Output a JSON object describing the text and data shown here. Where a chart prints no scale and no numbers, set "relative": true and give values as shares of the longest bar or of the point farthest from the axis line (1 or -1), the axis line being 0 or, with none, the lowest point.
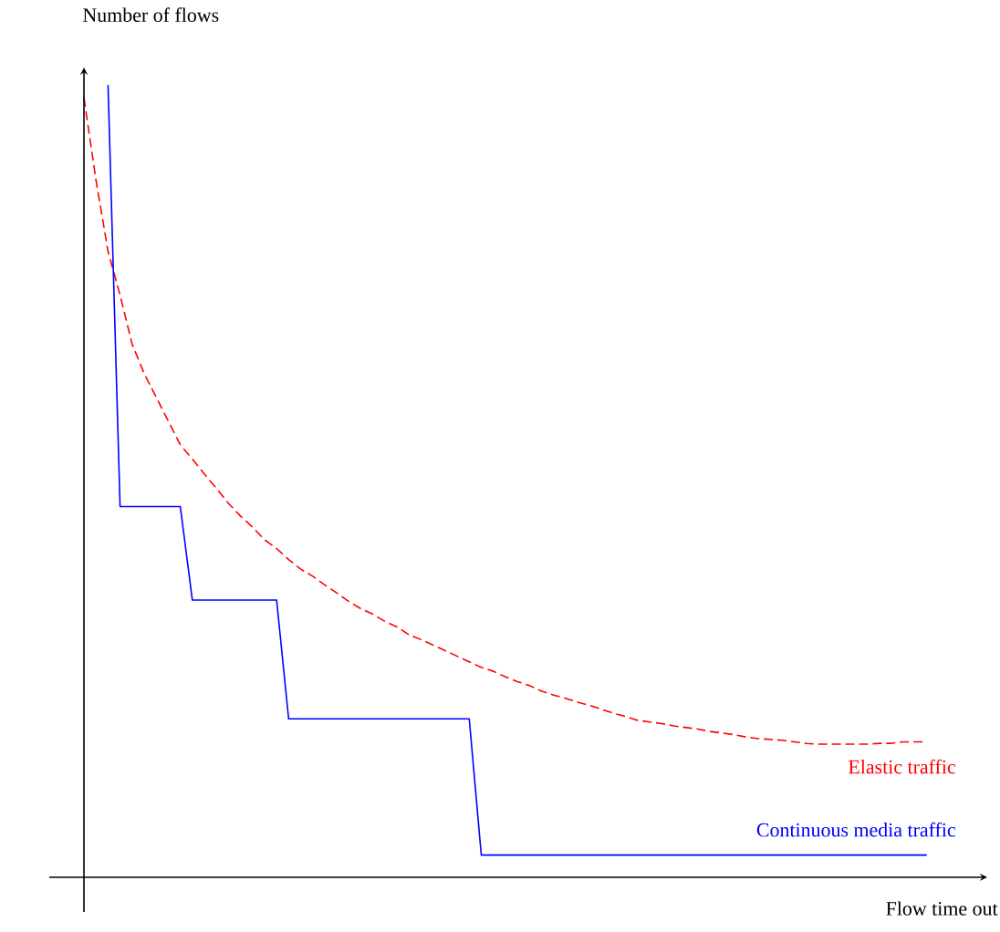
{
  "chart_data": {
    "type": "line",
    "xlabel": "Flow time out",
    "ylabel": "Number of flows",
    "relative": true,
    "categories": [
      null,
      null,
      null,
      null,
      null,
      null,
      null,
      null,
      null,
      null,
      null,
      null,
      null,
      null,
      null,
      null,
      null,
      null,
      null,
      null,
      null,
      null,
      null,
      null,
      null,
      null,
      null,
      null,
      null,
      null,
      null,
      null,
      null,
      null,
      null,
      null,
      null,
      null,
      null,
      null,
      null,
      null,
      null,
      null,
      null,
      null,
      null,
      null,
      null,
      null,
      null,
      null,
      null,
      null,
      null,
      null,
      null,
      null,
      null,
      null,
      null,
      null,
      null,
      null,
      null,
      null,
      null,
      null,
      null,
      null,
      null
    ],
    "series": [
      {
        "name": "Elastic traffic",
        "color": "#ff0000",
        "line_style": "dashed",
        "values": [
          0.984,
          0.88,
          0.79,
          0.735,
          0.673,
          0.636,
          0.606,
          0.576,
          0.546,
          0.528,
          0.509,
          0.491,
          0.472,
          0.456,
          0.442,
          0.426,
          0.415,
          0.401,
          0.389,
          0.38,
          0.369,
          0.359,
          0.348,
          0.339,
          0.332,
          0.323,
          0.316,
          0.306,
          0.3,
          0.293,
          0.286,
          0.279,
          0.272,
          0.265,
          0.26,
          0.253,
          0.247,
          0.242,
          0.235,
          0.23,
          0.226,
          0.221,
          0.217,
          0.212,
          0.207,
          0.203,
          0.198,
          0.196,
          0.194,
          0.191,
          0.189,
          0.187,
          0.184,
          0.182,
          0.18,
          0.177,
          0.175,
          0.174,
          0.173,
          0.171,
          0.169,
          0.168,
          0.168,
          0.168,
          0.168,
          0.168,
          0.169,
          0.169,
          0.171,
          0.171,
          0.171
        ]
      },
      {
        "name": "Continuous media traffic",
        "color": "#0000ff",
        "line_style": "solid",
        "values": [
          null,
          null,
          1,
          0.468,
          0.468,
          0.468,
          0.468,
          0.468,
          0.468,
          0.35,
          0.35,
          0.35,
          0.35,
          0.35,
          0.35,
          0.35,
          0.35,
          0.2,
          0.2,
          0.2,
          0.2,
          0.2,
          0.2,
          0.2,
          0.2,
          0.2,
          0.2,
          0.2,
          0.2,
          0.2,
          0.2,
          0.2,
          0.2,
          0.028,
          0.028,
          0.028,
          0.028,
          0.028,
          0.028,
          0.028,
          0.028,
          0.028,
          0.028,
          0.028,
          0.028,
          0.028,
          0.028,
          0.028,
          0.028,
          0.028,
          0.028,
          0.028,
          0.028,
          0.028,
          0.028,
          0.028,
          0.028,
          0.028,
          0.028,
          0.028,
          0.028,
          0.028,
          0.028,
          0.028,
          0.028,
          0.028,
          0.028,
          0.028,
          0.028,
          0.028,
          0.028
        ]
      }
    ]
  }
}
